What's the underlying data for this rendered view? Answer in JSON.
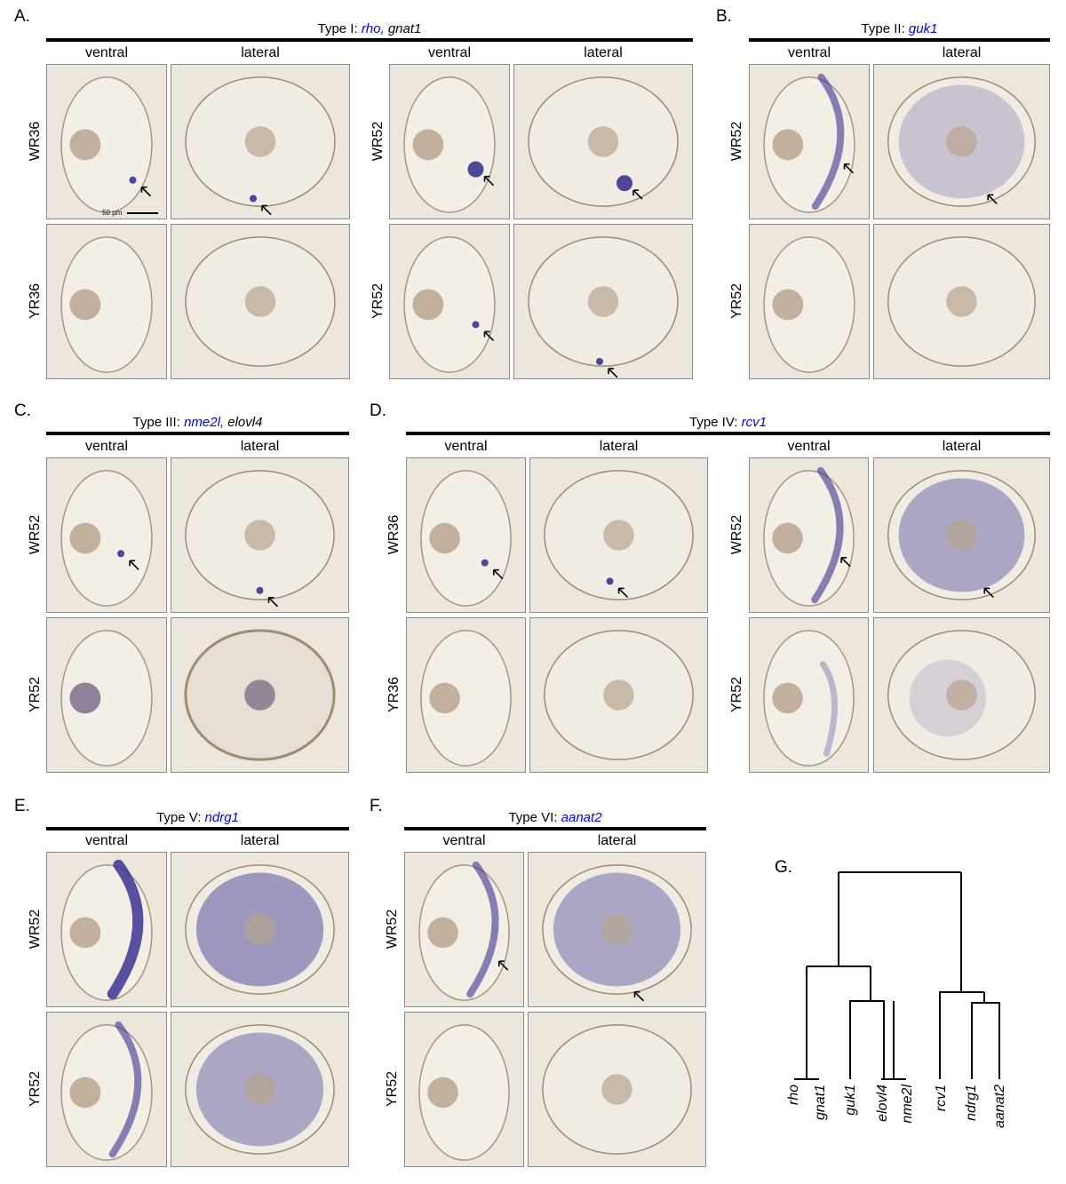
{
  "colors": {
    "stain": "#3a3490",
    "background": "#ece6dc",
    "lens": "#b8a48e",
    "accent": "#0000ee"
  },
  "scale_bar": "50 µm",
  "panels": [
    {
      "label": "A.",
      "title_pre": "Type I: ",
      "title_blue": "rho,",
      "title_post": " gnat1",
      "rows": [
        "WR36",
        "YR36",
        "WR52",
        "YR52"
      ],
      "cols": [
        "ventral",
        "lateral",
        "ventral",
        "lateral"
      ]
    },
    {
      "label": "B.",
      "title_pre": "Type II: ",
      "title_blue": "guk1",
      "title_post": "",
      "rows": [
        "WR52",
        "YR52"
      ],
      "cols": [
        "ventral",
        "lateral"
      ]
    },
    {
      "label": "C.",
      "title_pre": "Type III: ",
      "title_blue": "nme2l,",
      "title_post": " elovl4",
      "rows": [
        "WR52",
        "YR52"
      ],
      "cols": [
        "ventral",
        "lateral"
      ]
    },
    {
      "label": "D.",
      "title_pre": "Type IV: ",
      "title_blue": "rcv1",
      "title_post": "",
      "rows": [
        "WR36",
        "YR36",
        "WR52",
        "YR52"
      ],
      "cols": [
        "ventral",
        "lateral",
        "ventral",
        "lateral"
      ]
    },
    {
      "label": "E.",
      "title_pre": "Type V: ",
      "title_blue": "ndrg1",
      "title_post": "",
      "rows": [
        "WR52",
        "YR52"
      ],
      "cols": [
        "ventral",
        "lateral"
      ]
    },
    {
      "label": "F.",
      "title_pre": "Type VI: ",
      "title_blue": "aanat2",
      "title_post": "",
      "rows": [
        "WR52",
        "YR52"
      ],
      "cols": [
        "ventral",
        "lateral"
      ]
    }
  ],
  "dendrogram": {
    "label": "G.",
    "leaves": [
      "rho",
      "gnat1",
      "guk1",
      "elovl4",
      "nme2l",
      "rcv1",
      "ndrg1",
      "aanat2"
    ]
  }
}
